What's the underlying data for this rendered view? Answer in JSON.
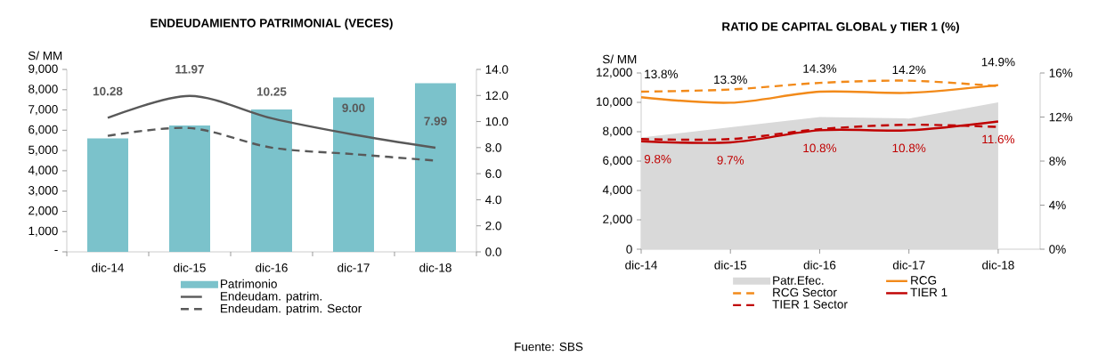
{
  "chart_data": [
    {
      "type": "bar",
      "title": "ENDEUDAMIENTO PATRIMONIAL (VECES)",
      "ylabel": "S/ MM",
      "categories": [
        "dic-14",
        "dic-15",
        "dic-16",
        "dic-17",
        "dic-18"
      ],
      "series": [
        {
          "name": "Patrimonio",
          "color": "#7bc2cb",
          "values": [
            5600,
            6230,
            7020,
            7620,
            8320
          ]
        },
        {
          "name": "Endeudam. patrim.",
          "type": "line",
          "axis": "y2",
          "color": "#595959",
          "line_style": "solid",
          "values": [
            10.28,
            11.97,
            10.25,
            9.0,
            7.99
          ],
          "value_labels": [
            "10.28",
            "11.97",
            "10.25",
            "9.00",
            "7.99"
          ]
        },
        {
          "name": "Endeudam. patrim. Sector",
          "type": "line",
          "axis": "y2",
          "color": "#595959",
          "line_style": "dashed",
          "values": [
            8.9,
            9.5,
            8.0,
            7.5,
            7.0
          ]
        }
      ],
      "ylim": [
        0,
        9000
      ],
      "yticks": [
        {
          "value": 0,
          "label": "-"
        },
        {
          "value": 1000,
          "label": "1,000"
        },
        {
          "value": 2000,
          "label": "2,000"
        },
        {
          "value": 3000,
          "label": "3,000"
        },
        {
          "value": 4000,
          "label": "4,000"
        },
        {
          "value": 5000,
          "label": "5,000"
        },
        {
          "value": 6000,
          "label": "6,000"
        },
        {
          "value": 7000,
          "label": "7,000"
        },
        {
          "value": 8000,
          "label": "8,000"
        },
        {
          "value": 9000,
          "label": "9,000"
        }
      ],
      "y2lim": [
        0,
        14
      ],
      "y2ticks": [
        {
          "value": 0,
          "label": "0.0"
        },
        {
          "value": 2,
          "label": "2.0"
        },
        {
          "value": 4,
          "label": "4.0"
        },
        {
          "value": 6,
          "label": "6.0"
        },
        {
          "value": 8,
          "label": "8.0"
        },
        {
          "value": 10,
          "label": "10.0"
        },
        {
          "value": 12,
          "label": "12.0"
        },
        {
          "value": 14,
          "label": "14.0"
        }
      ],
      "grid": false,
      "legend": "bottom"
    },
    {
      "type": "area",
      "title": "RATIO DE CAPITAL GLOBAL y TIER 1 (%)",
      "ylabel": "S/ MM",
      "categories": [
        "dic-14",
        "dic-15",
        "dic-16",
        "dic-17",
        "dic-18"
      ],
      "series": [
        {
          "name": "Patr.Efec.",
          "color": "#d9d9d9",
          "values": [
            7600,
            8300,
            9000,
            8900,
            10000
          ]
        },
        {
          "name": "RCG",
          "type": "line",
          "axis": "y2",
          "color": "#f28a1a",
          "line_style": "solid",
          "values": [
            13.8,
            13.3,
            14.3,
            14.2,
            14.9
          ],
          "value_labels": [
            "13.8%",
            "13.3%",
            "14.3%",
            "14.2%",
            "14.9%"
          ]
        },
        {
          "name": "RCG Sector",
          "type": "line",
          "axis": "y2",
          "color": "#f28a1a",
          "line_style": "dashed",
          "values": [
            14.3,
            14.5,
            15.1,
            15.3,
            14.8
          ]
        },
        {
          "name": "TIER 1",
          "type": "line",
          "axis": "y2",
          "color": "#c00000",
          "line_style": "solid",
          "values": [
            9.8,
            9.7,
            10.8,
            10.8,
            11.6
          ],
          "value_labels": [
            "9.8%",
            "9.7%",
            "10.8%",
            "10.8%",
            "11.6%"
          ]
        },
        {
          "name": "TIER 1 Sector",
          "type": "line",
          "axis": "y2",
          "color": "#c00000",
          "line_style": "dashed",
          "values": [
            10.0,
            10.0,
            10.9,
            11.3,
            11.1
          ]
        }
      ],
      "ylim": [
        0,
        12000
      ],
      "yticks": [
        0,
        {
          "value": 2000,
          "label": "2,000"
        },
        {
          "value": 4000,
          "label": "4,000"
        },
        {
          "value": 6000,
          "label": "6,000"
        },
        {
          "value": 8000,
          "label": "8,000"
        },
        {
          "value": 10000,
          "label": "10,000"
        },
        {
          "value": 12000,
          "label": "12,000"
        }
      ],
      "y2lim": [
        0,
        16
      ],
      "y2ticks": [
        {
          "value": 0,
          "label": "0%"
        },
        {
          "value": 4,
          "label": "4%"
        },
        {
          "value": 8,
          "label": "8%"
        },
        {
          "value": 12,
          "label": "12%"
        },
        {
          "value": 16,
          "label": "16%"
        }
      ],
      "grid": false,
      "legend": "bottom",
      "annotations": [
        "Fuente: SBS"
      ]
    }
  ]
}
